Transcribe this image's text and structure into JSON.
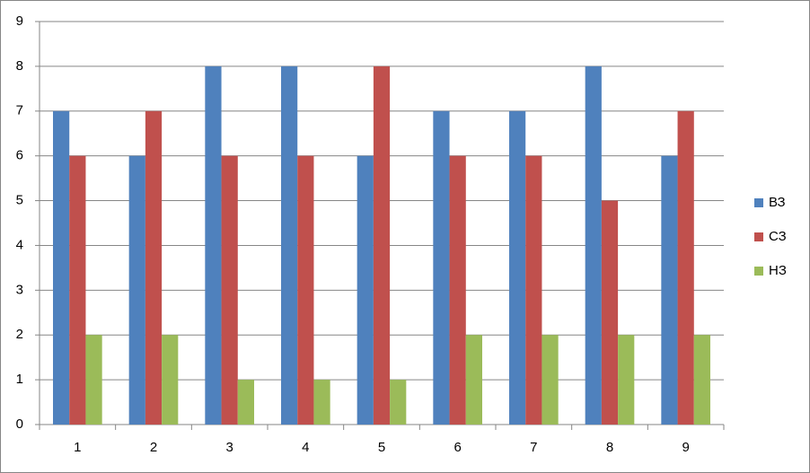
{
  "chart_data": {
    "type": "bar",
    "categories": [
      "1",
      "2",
      "3",
      "4",
      "5",
      "6",
      "7",
      "8",
      "9"
    ],
    "series": [
      {
        "name": "ВЗ",
        "color": "#4f81bd",
        "values": [
          7,
          6,
          8,
          8,
          6,
          7,
          7,
          8,
          6
        ]
      },
      {
        "name": "СЗ",
        "color": "#c0504d",
        "values": [
          6,
          7,
          6,
          6,
          8,
          6,
          6,
          5,
          7
        ]
      },
      {
        "name": "НЗ",
        "color": "#9bbb59",
        "values": [
          2,
          2,
          1,
          1,
          1,
          2,
          2,
          2,
          2
        ]
      }
    ],
    "ylim": [
      0,
      9
    ],
    "yticks": [
      0,
      1,
      2,
      3,
      4,
      5,
      6,
      7,
      8,
      9
    ],
    "grid": true,
    "legend": "right"
  }
}
